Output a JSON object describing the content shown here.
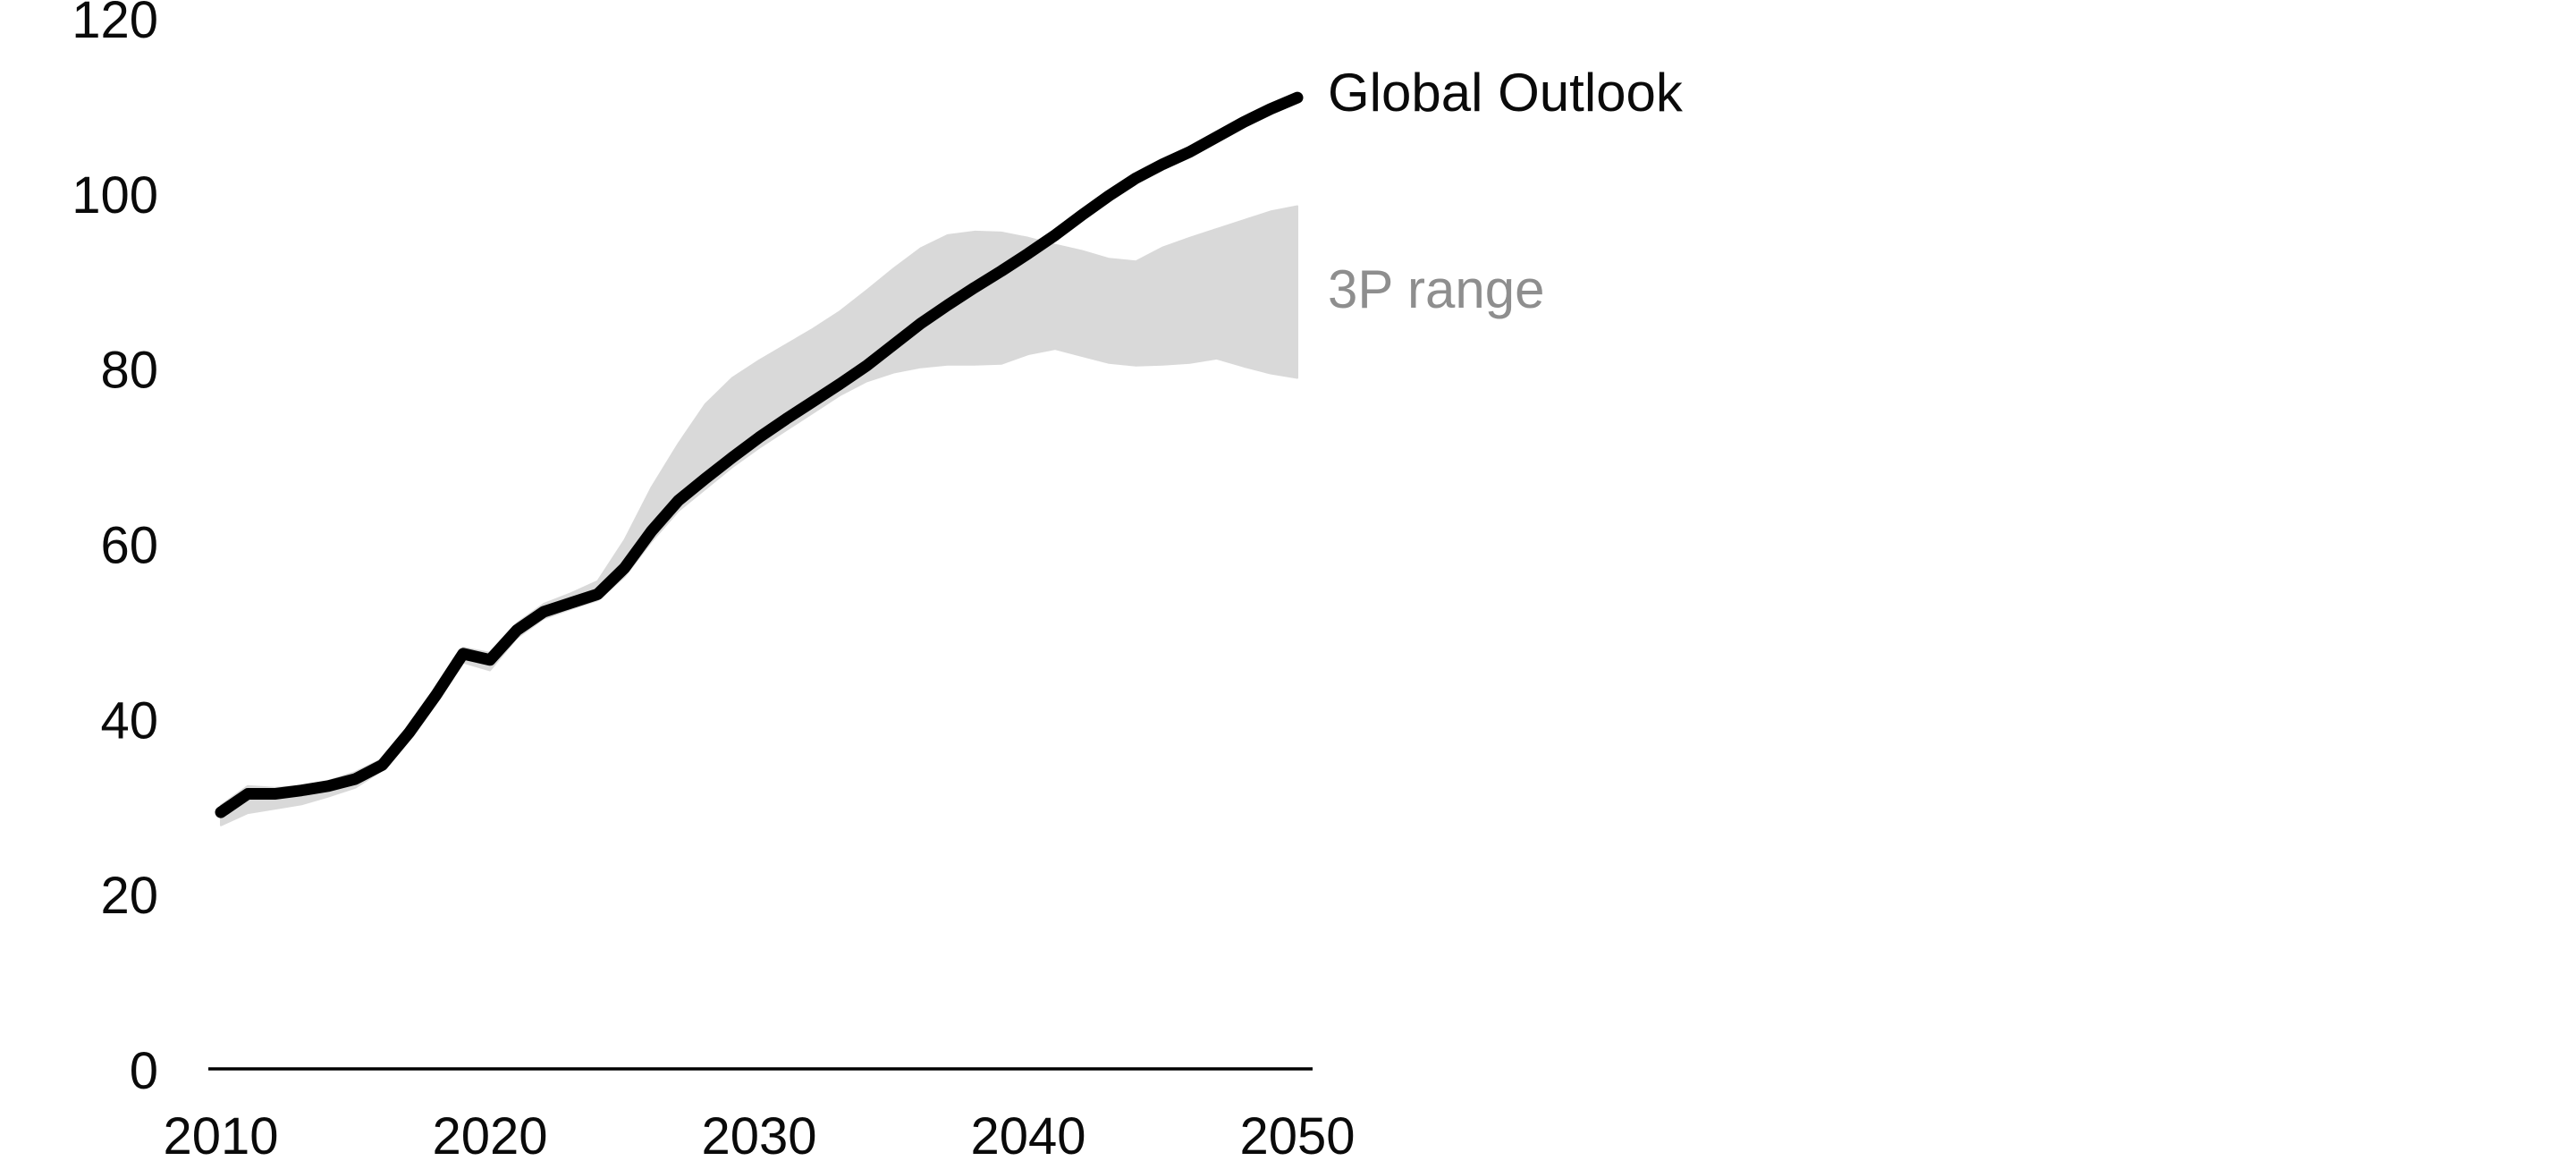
{
  "chart_data": {
    "type": "line",
    "x": [
      2010,
      2011,
      2012,
      2013,
      2014,
      2015,
      2016,
      2017,
      2018,
      2019,
      2020,
      2021,
      2022,
      2023,
      2024,
      2025,
      2026,
      2027,
      2028,
      2029,
      2030,
      2031,
      2032,
      2033,
      2034,
      2035,
      2036,
      2037,
      2038,
      2039,
      2040,
      2041,
      2042,
      2043,
      2044,
      2045,
      2046,
      2047,
      2048,
      2049,
      2050
    ],
    "series": [
      {
        "name": "Global Outlook",
        "type": "line",
        "color": "#000000",
        "values": [
          29.4,
          31.5,
          31.5,
          31.9,
          32.4,
          33.2,
          34.8,
          38.5,
          42.8,
          47.5,
          46.8,
          50.2,
          52.3,
          53.3,
          54.3,
          57.3,
          61.5,
          65.0,
          67.5,
          69.9,
          72.2,
          74.3,
          76.3,
          78.3,
          80.4,
          82.8,
          85.2,
          87.3,
          89.3,
          91.2,
          93.2,
          95.3,
          97.6,
          99.8,
          101.8,
          103.4,
          104.8,
          106.5,
          108.2,
          109.7,
          111.0
        ]
      },
      {
        "name": "3P range",
        "type": "band",
        "color": "#d9d9d9",
        "label_color": "#8e8e8e",
        "low": [
          27.9,
          29.3,
          29.8,
          30.3,
          31.2,
          32.2,
          34.2,
          37.8,
          42.2,
          46.5,
          45.6,
          49.3,
          51.5,
          52.6,
          53.6,
          56.3,
          60.3,
          63.8,
          66.3,
          68.8,
          71.0,
          73.0,
          75.0,
          77.0,
          78.6,
          79.6,
          80.2,
          80.5,
          80.5,
          80.6,
          81.7,
          82.3,
          81.5,
          80.7,
          80.4,
          80.5,
          80.7,
          81.2,
          80.3,
          79.5,
          79.0
        ],
        "high": [
          30.2,
          32.4,
          32.2,
          32.4,
          33.0,
          34.0,
          35.5,
          39.2,
          43.5,
          48.2,
          47.6,
          51.0,
          53.2,
          54.4,
          55.8,
          60.5,
          66.5,
          71.5,
          76.0,
          79.0,
          81.0,
          82.8,
          84.6,
          86.6,
          89.0,
          91.5,
          93.8,
          95.3,
          95.7,
          95.6,
          95.0,
          94.2,
          93.5,
          92.6,
          92.3,
          93.9,
          95.0,
          96.0,
          97.0,
          98.0,
          98.6
        ]
      }
    ],
    "xlabel": "",
    "ylabel": "",
    "xticks": [
      2010,
      2020,
      2030,
      2040,
      2050
    ],
    "yticks": [
      0,
      20,
      40,
      60,
      80,
      100,
      120
    ],
    "xlim": [
      2010,
      2050
    ],
    "ylim": [
      0,
      120
    ],
    "grid": false,
    "legend_position": "inline-right",
    "axis_color": "#000000"
  }
}
